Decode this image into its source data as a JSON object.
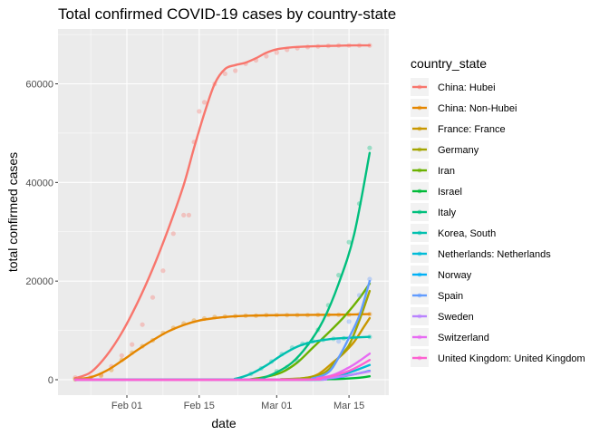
{
  "chart_data": {
    "type": "line",
    "title": "Total confirmed COVID-19 cases by country-state",
    "xlabel": "date",
    "ylabel": "total confirmed cases",
    "x_ticks": [
      {
        "label": "Feb 01",
        "day": 10
      },
      {
        "label": "Feb 15",
        "day": 24
      },
      {
        "label": "Mar 01",
        "day": 39
      },
      {
        "label": "Mar 15",
        "day": 53
      }
    ],
    "y_ticks": [
      {
        "label": "0",
        "value": 0
      },
      {
        "label": "20000",
        "value": 20000
      },
      {
        "label": "40000",
        "value": 40000
      },
      {
        "label": "60000",
        "value": 60000
      }
    ],
    "xlim": [
      "Jan 18",
      "Mar 23"
    ],
    "ylim": [
      -1600,
      71500
    ],
    "grid": true,
    "legend_title": "country_state",
    "legend_position": "right",
    "series": [
      {
        "name": "China: Hubei",
        "color": "#F8766D",
        "points": [
          [
            0,
            444
          ],
          [
            3,
            549
          ],
          [
            5,
            1052
          ],
          [
            7,
            2714
          ],
          [
            9,
            4903
          ],
          [
            11,
            7153
          ],
          [
            13,
            11177
          ],
          [
            15,
            16678
          ],
          [
            17,
            22112
          ],
          [
            19,
            29631
          ],
          [
            21,
            33366
          ],
          [
            22,
            33366
          ],
          [
            23,
            48206
          ],
          [
            24,
            54406
          ],
          [
            25,
            56249
          ],
          [
            27,
            59989
          ],
          [
            29,
            62031
          ],
          [
            31,
            62662
          ],
          [
            33,
            64084
          ],
          [
            35,
            64786
          ],
          [
            37,
            65596
          ],
          [
            39,
            66337
          ],
          [
            41,
            66907
          ],
          [
            43,
            67217
          ],
          [
            45,
            67466
          ],
          [
            47,
            67592
          ],
          [
            49,
            67707
          ],
          [
            51,
            67773
          ],
          [
            53,
            67794
          ],
          [
            55,
            67800
          ],
          [
            57,
            67800
          ]
        ],
        "curve": [
          [
            0,
            300
          ],
          [
            3,
            1500
          ],
          [
            6,
            4800
          ],
          [
            9,
            9500
          ],
          [
            12,
            15500
          ],
          [
            15,
            22500
          ],
          [
            18,
            30500
          ],
          [
            21,
            39500
          ],
          [
            23,
            47000
          ],
          [
            25,
            54000
          ],
          [
            27,
            60000
          ],
          [
            29,
            63000
          ],
          [
            31,
            63800
          ],
          [
            33,
            64300
          ],
          [
            35,
            65200
          ],
          [
            37,
            66300
          ],
          [
            39,
            67000
          ],
          [
            42,
            67400
          ],
          [
            46,
            67600
          ],
          [
            50,
            67700
          ],
          [
            54,
            67800
          ],
          [
            57,
            67800
          ]
        ]
      },
      {
        "name": "China: Non-Hubei",
        "color": "#E58700",
        "points": [
          [
            0,
            100
          ],
          [
            3,
            200
          ],
          [
            5,
            800
          ],
          [
            7,
            2000
          ],
          [
            9,
            4000
          ],
          [
            11,
            5500
          ],
          [
            13,
            6800
          ],
          [
            15,
            8000
          ],
          [
            17,
            9500
          ],
          [
            19,
            10500
          ],
          [
            21,
            11400
          ],
          [
            23,
            12000
          ],
          [
            25,
            12400
          ],
          [
            27,
            12700
          ],
          [
            29,
            12800
          ],
          [
            31,
            12900
          ],
          [
            33,
            13000
          ],
          [
            35,
            13000
          ],
          [
            37,
            13100
          ],
          [
            39,
            13100
          ],
          [
            41,
            13100
          ],
          [
            43,
            13100
          ],
          [
            45,
            13100
          ],
          [
            47,
            13150
          ],
          [
            49,
            13150
          ],
          [
            51,
            13180
          ],
          [
            53,
            13200
          ],
          [
            55,
            13250
          ],
          [
            57,
            13300
          ]
        ],
        "curve": [
          [
            0,
            100
          ],
          [
            3,
            500
          ],
          [
            6,
            1800
          ],
          [
            9,
            3800
          ],
          [
            12,
            6000
          ],
          [
            15,
            8000
          ],
          [
            18,
            9800
          ],
          [
            21,
            11100
          ],
          [
            24,
            12000
          ],
          [
            27,
            12500
          ],
          [
            30,
            12800
          ],
          [
            34,
            13000
          ],
          [
            40,
            13100
          ],
          [
            46,
            13150
          ],
          [
            52,
            13200
          ],
          [
            57,
            13300
          ]
        ]
      },
      {
        "name": "France: France",
        "color": "#C99800",
        "curve": [
          [
            0,
            0
          ],
          [
            36,
            0
          ],
          [
            40,
            100
          ],
          [
            44,
            300
          ],
          [
            47,
            1100
          ],
          [
            50,
            3600
          ],
          [
            52,
            5400
          ],
          [
            54,
            7700
          ],
          [
            56,
            10900
          ],
          [
            57,
            12500
          ]
        ]
      },
      {
        "name": "Germany",
        "color": "#A3A500",
        "curve": [
          [
            0,
            0
          ],
          [
            36,
            0
          ],
          [
            40,
            100
          ],
          [
            44,
            300
          ],
          [
            47,
            800
          ],
          [
            49,
            2000
          ],
          [
            51,
            4500
          ],
          [
            53,
            7000
          ],
          [
            55,
            12000
          ],
          [
            57,
            18000
          ]
        ]
      },
      {
        "name": "Iran",
        "color": "#6BB100",
        "curve": [
          [
            0,
            0
          ],
          [
            31,
            0
          ],
          [
            34,
            100
          ],
          [
            37,
            600
          ],
          [
            40,
            1500
          ],
          [
            43,
            3500
          ],
          [
            46,
            6500
          ],
          [
            49,
            9500
          ],
          [
            52,
            12700
          ],
          [
            55,
            16500
          ],
          [
            57,
            19500
          ]
        ]
      },
      {
        "name": "Israel",
        "color": "#00BA38",
        "curve": [
          [
            0,
            0
          ],
          [
            44,
            0
          ],
          [
            48,
            100
          ],
          [
            52,
            200
          ],
          [
            55,
            400
          ],
          [
            57,
            700
          ]
        ]
      },
      {
        "name": "Italy",
        "color": "#00BF7D",
        "points": [
          [
            39,
            1700
          ],
          [
            41,
            2500
          ],
          [
            43,
            3900
          ],
          [
            45,
            7300
          ],
          [
            47,
            10100
          ],
          [
            49,
            15100
          ],
          [
            51,
            21200
          ],
          [
            53,
            27900
          ],
          [
            55,
            35700
          ],
          [
            57,
            47000
          ]
        ],
        "curve": [
          [
            0,
            0
          ],
          [
            33,
            0
          ],
          [
            36,
            300
          ],
          [
            39,
            1500
          ],
          [
            42,
            3500
          ],
          [
            45,
            7000
          ],
          [
            48,
            12000
          ],
          [
            51,
            19500
          ],
          [
            54,
            29500
          ],
          [
            57,
            46000
          ]
        ]
      },
      {
        "name": "Korea, South",
        "color": "#00C0AF",
        "points": [
          [
            34,
            1200
          ],
          [
            36,
            2300
          ],
          [
            38,
            3700
          ],
          [
            40,
            5200
          ],
          [
            42,
            6500
          ],
          [
            44,
            7300
          ],
          [
            46,
            7800
          ],
          [
            48,
            8100
          ],
          [
            50,
            8300
          ],
          [
            52,
            8400
          ],
          [
            54,
            8600
          ],
          [
            57,
            8700
          ]
        ],
        "curve": [
          [
            0,
            0
          ],
          [
            28,
            0
          ],
          [
            31,
            200
          ],
          [
            34,
            1200
          ],
          [
            37,
            2900
          ],
          [
            40,
            5000
          ],
          [
            43,
            6700
          ],
          [
            46,
            7700
          ],
          [
            49,
            8200
          ],
          [
            52,
            8450
          ],
          [
            55,
            8600
          ],
          [
            57,
            8700
          ]
        ]
      },
      {
        "name": "Netherlands: Netherlands",
        "color": "#00BCD8",
        "curve": [
          [
            0,
            0
          ],
          [
            44,
            0
          ],
          [
            48,
            300
          ],
          [
            51,
            800
          ],
          [
            54,
            1800
          ],
          [
            57,
            3000
          ]
        ]
      },
      {
        "name": "Norway",
        "color": "#00B0F6",
        "curve": [
          [
            0,
            0
          ],
          [
            44,
            0
          ],
          [
            48,
            200
          ],
          [
            51,
            500
          ],
          [
            54,
            1100
          ],
          [
            57,
            1800
          ]
        ]
      },
      {
        "name": "Spain",
        "color": "#619CFF",
        "points": [
          [
            51,
            7800
          ],
          [
            53,
            11800
          ],
          [
            55,
            17100
          ],
          [
            57,
            20400
          ]
        ],
        "curve": [
          [
            0,
            0
          ],
          [
            42,
            0
          ],
          [
            46,
            300
          ],
          [
            49,
            1500
          ],
          [
            51,
            4500
          ],
          [
            53,
            8500
          ],
          [
            55,
            13000
          ],
          [
            57,
            20000
          ]
        ]
      },
      {
        "name": "Sweden",
        "color": "#B983FF",
        "curve": [
          [
            0,
            0
          ],
          [
            44,
            0
          ],
          [
            48,
            200
          ],
          [
            51,
            600
          ],
          [
            54,
            1100
          ],
          [
            57,
            1700
          ]
        ]
      },
      {
        "name": "Switzerland",
        "color": "#E76BF3",
        "curve": [
          [
            0,
            0
          ],
          [
            43,
            0
          ],
          [
            47,
            300
          ],
          [
            50,
            1000
          ],
          [
            53,
            2500
          ],
          [
            55,
            3800
          ],
          [
            57,
            5300
          ]
        ]
      },
      {
        "name": "United Kingdom: United Kingdom",
        "color": "#FD61D1",
        "curve": [
          [
            0,
            0
          ],
          [
            43,
            0
          ],
          [
            47,
            300
          ],
          [
            50,
            800
          ],
          [
            53,
            1800
          ],
          [
            55,
            2800
          ],
          [
            57,
            4000
          ]
        ]
      }
    ]
  }
}
